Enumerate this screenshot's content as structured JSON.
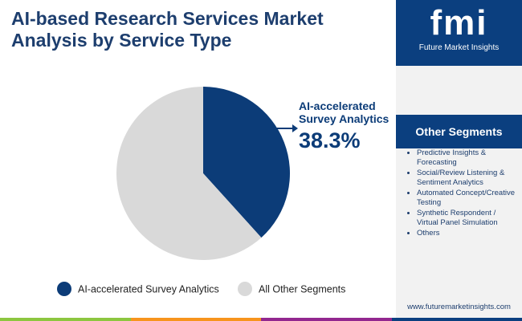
{
  "chart_data": {
    "type": "pie",
    "title": "AI-based Research Services Market Analysis by Service Type",
    "categories": [
      "AI-accelerated Survey Analytics",
      "All Other Segments"
    ],
    "values": [
      38.3,
      61.7
    ],
    "value_labels": [
      "38.3%",
      null
    ],
    "colors": [
      "#0c3c78",
      "#d9d9d9"
    ],
    "legend": "bottom"
  },
  "sidebar": {
    "logo": "fmi",
    "brand": "Future Market Insights",
    "heading": "Other Segments",
    "items": [
      "Predictive Insights & Forecasting",
      "Social/Review Listening & Sentiment Analytics",
      "Automated Concept/Creative Testing",
      "Synthetic Respondent / Virtual Panel Simulation",
      "Others"
    ],
    "url": "www.futuremarketinsights.com"
  }
}
